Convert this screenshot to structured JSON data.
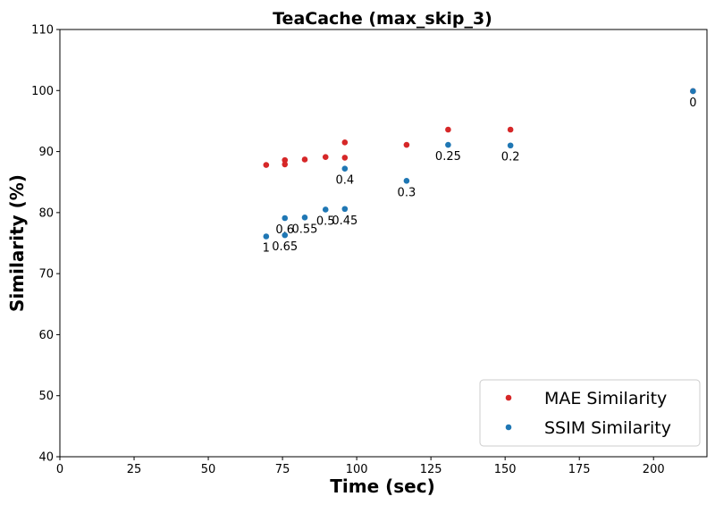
{
  "chart_data": {
    "type": "scatter",
    "title": "TeaCache (max_skip_3)",
    "xlabel": "Time (sec)",
    "ylabel": "Similarity (%)",
    "xlim": [
      0,
      218
    ],
    "ylim": [
      40,
      110
    ],
    "xticks": [
      "0",
      "25",
      "50",
      "75",
      "100",
      "125",
      "150",
      "175",
      "200"
    ],
    "yticks": [
      "40",
      "50",
      "60",
      "70",
      "80",
      "90",
      "100",
      "110"
    ],
    "grid": false,
    "legend_position": "bottom-right",
    "series": [
      {
        "name": "MAE Similarity",
        "color": "#d62728",
        "points": [
          {
            "x": 69.5,
            "y": 87.8
          },
          {
            "x": 75.8,
            "y": 88.6
          },
          {
            "x": 75.8,
            "y": 87.9
          },
          {
            "x": 82.5,
            "y": 88.7
          },
          {
            "x": 89.5,
            "y": 89.1
          },
          {
            "x": 96.0,
            "y": 91.5
          },
          {
            "x": 96.0,
            "y": 89.0
          },
          {
            "x": 116.8,
            "y": 91.1
          },
          {
            "x": 130.8,
            "y": 93.6
          },
          {
            "x": 151.8,
            "y": 93.6
          },
          {
            "x": 213.3,
            "y": 99.9
          }
        ]
      },
      {
        "name": "SSIM Similarity",
        "color": "#1f77b4",
        "points": [
          {
            "x": 69.5,
            "y": 76.1,
            "label": "1"
          },
          {
            "x": 75.8,
            "y": 79.1,
            "label": "0.6"
          },
          {
            "x": 75.8,
            "y": 76.3,
            "label": "0.65"
          },
          {
            "x": 82.5,
            "y": 79.2,
            "label": "0.55"
          },
          {
            "x": 89.5,
            "y": 80.5,
            "label": "0.5"
          },
          {
            "x": 96.0,
            "y": 87.2,
            "label": "0.4"
          },
          {
            "x": 96.0,
            "y": 80.6,
            "label": "0.45"
          },
          {
            "x": 116.8,
            "y": 85.2,
            "label": "0.3"
          },
          {
            "x": 130.8,
            "y": 91.1,
            "label": "0.25"
          },
          {
            "x": 151.8,
            "y": 91.0,
            "label": "0.2"
          },
          {
            "x": 213.3,
            "y": 99.9,
            "label": "0"
          }
        ]
      }
    ]
  }
}
